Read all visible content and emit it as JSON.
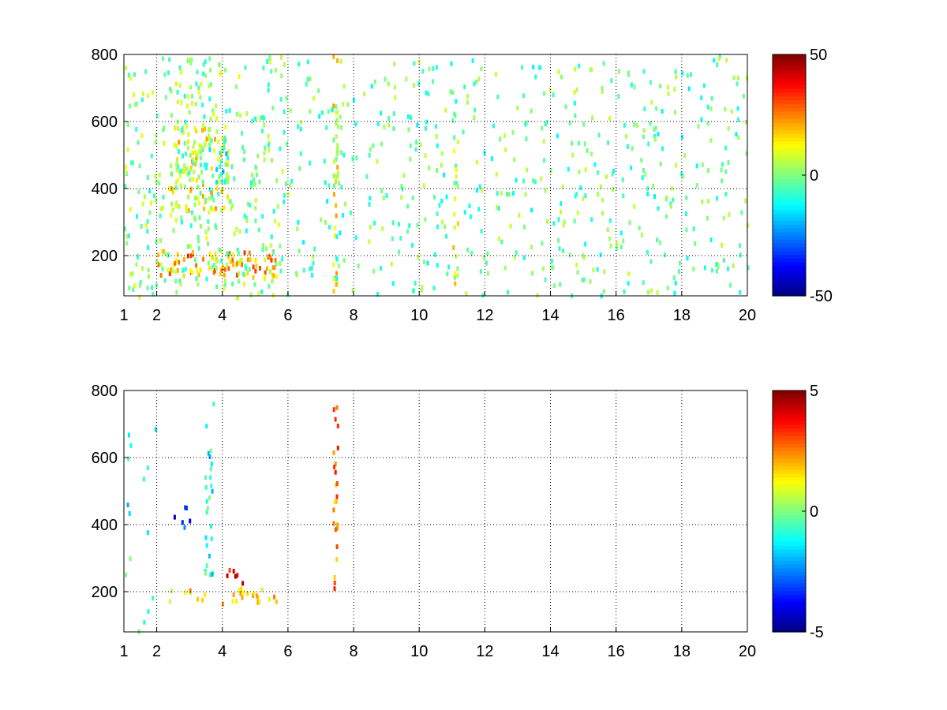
{
  "chart_data": [
    {
      "type": "heatmap",
      "x_ticks": [
        "1",
        "2",
        "4",
        "6",
        "8",
        "10",
        "12",
        "14",
        "16",
        "18",
        "20"
      ],
      "x_tick_values": [
        1,
        2,
        4,
        6,
        8,
        10,
        12,
        14,
        16,
        18,
        20
      ],
      "y_ticks": [
        "200",
        "400",
        "600",
        "800"
      ],
      "y_tick_values": [
        200,
        400,
        600,
        800
      ],
      "xlim": [
        1,
        20
      ],
      "ylim": [
        80,
        800
      ],
      "grid": true,
      "colormap": "jet",
      "colorbar": {
        "ticks": [
          "50",
          "0",
          "-50"
        ],
        "tick_values": [
          50,
          0,
          -50
        ],
        "clim": [
          -50,
          50
        ]
      },
      "features": [
        {
          "x": [
            2.0,
            5.8
          ],
          "y": [
            140,
            220
          ],
          "value": 22,
          "density": 0.9
        },
        {
          "x": [
            2.4,
            4.2
          ],
          "y": [
            330,
            600
          ],
          "value": 12,
          "density": 0.75
        },
        {
          "x": [
            3.3,
            4.1
          ],
          "y": [
            420,
            560
          ],
          "value": -12,
          "density": 0.7
        },
        {
          "x": [
            1.0,
            6.0
          ],
          "y": [
            80,
            800
          ],
          "value": 0,
          "density": 0.35
        },
        {
          "x": [
            6.0,
            20.0
          ],
          "y": [
            80,
            800
          ],
          "value": -3,
          "density": 0.18
        },
        {
          "x": [
            7.35,
            7.5
          ],
          "y": [
            80,
            800
          ],
          "value": 12,
          "density": 1.0
        },
        {
          "x": [
            11.0,
            11.15
          ],
          "y": [
            80,
            560
          ],
          "value": 10,
          "density": 0.8
        }
      ]
    },
    {
      "type": "heatmap",
      "x_ticks": [
        "1",
        "2",
        "4",
        "6",
        "8",
        "10",
        "12",
        "14",
        "16",
        "18",
        "20"
      ],
      "x_tick_values": [
        1,
        2,
        4,
        6,
        8,
        10,
        12,
        14,
        16,
        18,
        20
      ],
      "y_ticks": [
        "200",
        "400",
        "600",
        "800"
      ],
      "y_tick_values": [
        200,
        400,
        600,
        800
      ],
      "xlim": [
        1,
        20
      ],
      "ylim": [
        80,
        800
      ],
      "grid": true,
      "colormap": "jet",
      "colorbar": {
        "ticks": [
          "5",
          "0",
          "-5"
        ],
        "tick_values": [
          5,
          0,
          -5
        ],
        "clim": [
          -5,
          5
        ]
      },
      "features": [
        {
          "x": [
            2.3,
            5.8
          ],
          "y": [
            170,
            215
          ],
          "value": 1.5,
          "density": 0.6
        },
        {
          "x": [
            3.4,
            3.7
          ],
          "y": [
            200,
            800
          ],
          "value": -1,
          "density": 0.5
        },
        {
          "x": [
            2.5,
            3.0
          ],
          "y": [
            380,
            470
          ],
          "value": -3.5,
          "density": 0.45
        },
        {
          "x": [
            3.8,
            4.6
          ],
          "y": [
            230,
            320
          ],
          "value": 4,
          "density": 0.3
        },
        {
          "x": [
            7.35,
            7.5
          ],
          "y": [
            215,
            760
          ],
          "value": 2.5,
          "density": 1.0
        },
        {
          "x": [
            1.0,
            2.0
          ],
          "y": [
            80,
            700
          ],
          "value": -1,
          "density": 0.08
        }
      ]
    }
  ]
}
